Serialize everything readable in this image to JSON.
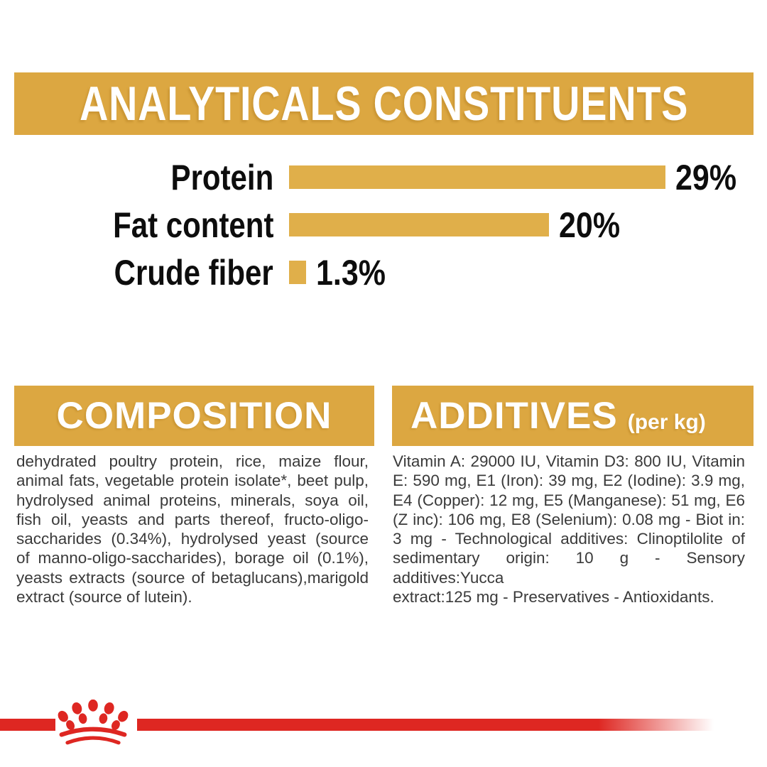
{
  "colors": {
    "gold_banner": "#DCA741",
    "gold_bar": "#E0AF4A",
    "red": "#DE2722",
    "text_black": "#0d0d0d",
    "text_body": "#3a3a3a",
    "white": "#ffffff"
  },
  "banner": {
    "title": "ANALYTICALS CONSTITUENTS"
  },
  "chart_data": {
    "type": "bar",
    "orientation": "horizontal",
    "title": "ANALYTICALS CONSTITUENTS",
    "categories": [
      "Protein",
      "Fat content",
      "Crude fiber"
    ],
    "values": [
      29,
      20,
      1.3
    ],
    "value_labels": [
      "29%",
      "20%",
      "1.3%"
    ],
    "unit": "%",
    "xlim": [
      0,
      29
    ],
    "bar_color": "#E0AF4A",
    "grid": false,
    "legend": false
  },
  "composition": {
    "heading": "COMPOSITION",
    "lines": [
      "dehydrated poultry protein, rice, maize flour,",
      "animal fats, vegetable protein isolate*, beet pulp,",
      "hydrolysed animal proteins, minerals, soya oil,",
      "fish oil, yeasts and parts thereof, fructo-oligo-",
      "saccharides (0.34%), hydrolysed yeast (source",
      "of manno-oligo-saccharides), borage oil (0.1%),",
      "yeasts extracts (source of betaglucans),marigold",
      "extract (source of lutein)."
    ]
  },
  "additives": {
    "heading": "ADDITIVES",
    "heading_suffix": "(per kg)",
    "lines": [
      "Vitamin A: 29000 IU, Vitamin D3: 800 IU, Vitamin",
      "E: 590 mg, E1 (Iron): 39 mg, E2 (Iodine): 3.9 mg,",
      "E4 (Copper): 12 mg, E5 (Manganese): 51 mg, E6",
      "(Z inc): 106 mg, E8 (Selenium): 0.08 mg - Biot in:",
      "3 mg - Technological additives: Clinoptilolite of",
      "sedimentary origin: 10 g - Sensory additives:Yucca",
      "extract:125 mg - Preservatives - Antioxidants."
    ]
  },
  "footer": {
    "logo": "royal-canin-crown"
  }
}
